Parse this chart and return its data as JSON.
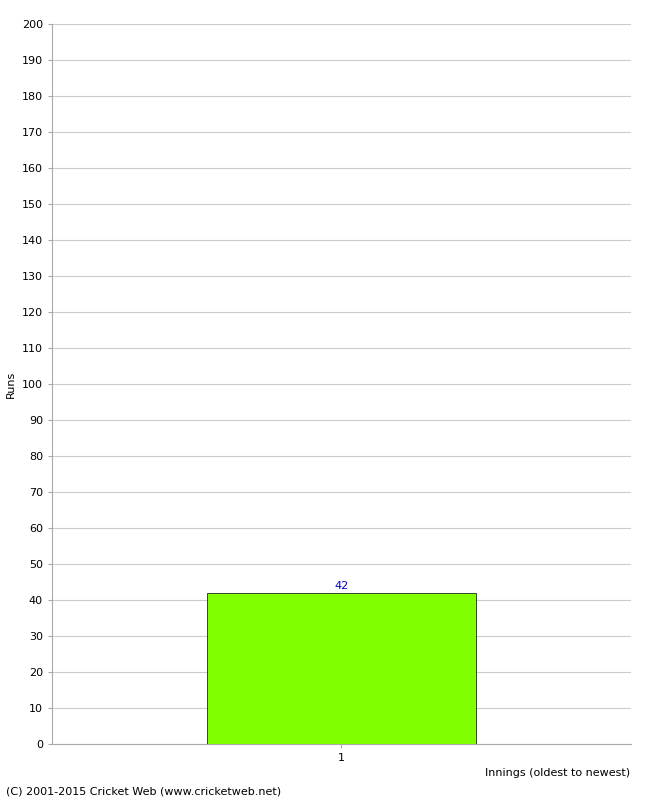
{
  "xlabel": "Innings (oldest to newest)",
  "ylabel": "Runs",
  "bar_values": [
    42
  ],
  "bar_positions": [
    1
  ],
  "bar_color": "#7FFF00",
  "bar_edge_color": "#000000",
  "ylim": [
    0,
    200
  ],
  "ytick_step": 10,
  "xtick_labels": [
    "1"
  ],
  "footer": "(C) 2001-2015 Cricket Web (www.cricketweb.net)",
  "background_color": "#ffffff",
  "grid_color": "#cccccc",
  "bar_width": 0.65,
  "value_label_fontsize": 8,
  "value_label_color": "#0000cc",
  "axis_label_fontsize": 8,
  "tick_label_fontsize": 8,
  "footer_fontsize": 8,
  "ylabel_fontsize": 8
}
